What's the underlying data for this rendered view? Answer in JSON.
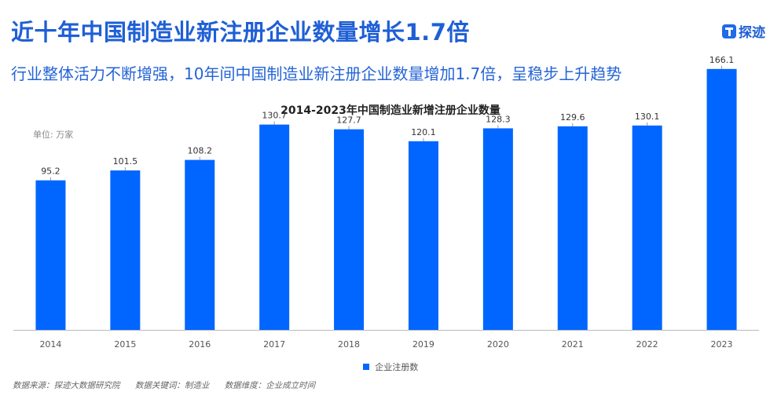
{
  "header": {
    "title": "近十年中国制造业新注册企业数量增长1.7倍",
    "subtitle": "行业整体活力不断增强，10年间中国制造业新注册企业数量增加1.7倍，呈稳步上升趋势",
    "logo_text": "探迹",
    "logo_icon": "tanji-logo-icon"
  },
  "chart_data": {
    "type": "bar",
    "title": "2014-2023年中国制造业新增注册企业数量",
    "unit_label": "单位: 万家",
    "categories": [
      "2014",
      "2015",
      "2016",
      "2017",
      "2018",
      "2019",
      "2020",
      "2021",
      "2022",
      "2023"
    ],
    "series": [
      {
        "name": "企业注册数",
        "values": [
          95.2,
          101.5,
          108.2,
          130.7,
          127.7,
          120.1,
          128.3,
          129.6,
          130.1,
          166.1
        ],
        "color": "#0066ff"
      }
    ],
    "ylim": [
      0,
      200
    ],
    "grid": false,
    "legend_position": "bottom",
    "xlabel": "",
    "ylabel": ""
  },
  "footer": {
    "source": "数据来源：探迹大数据研究院",
    "keyword": "数据关键词：制造业",
    "dimension": "数据维度：企业成立时间"
  }
}
